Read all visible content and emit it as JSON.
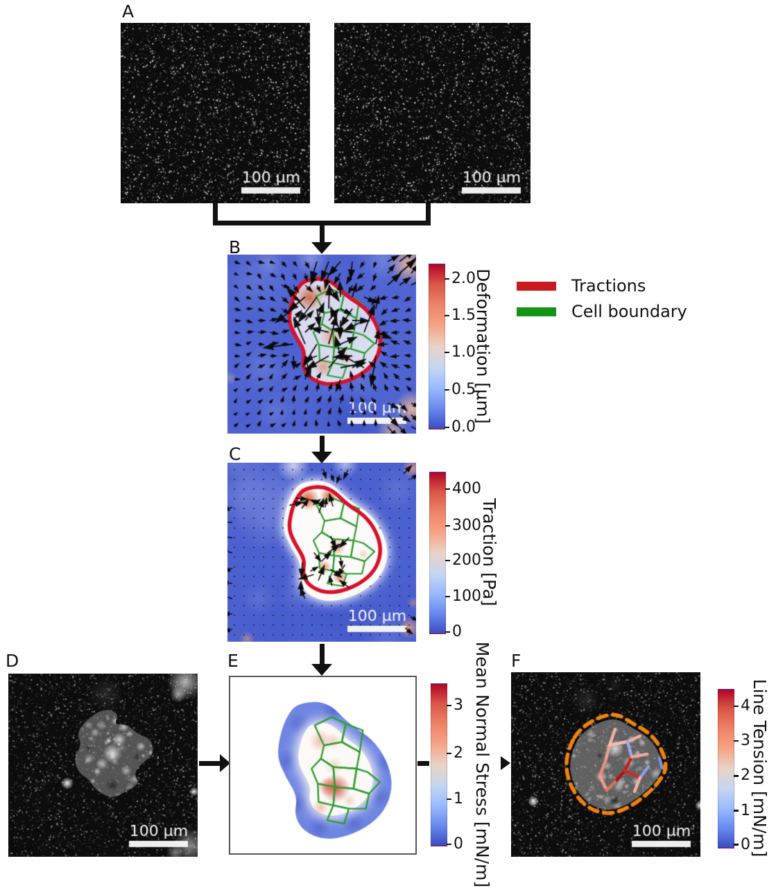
{
  "panel_labels": {
    "a": "A",
    "b": "B",
    "c": "C",
    "d": "D",
    "e": "E",
    "f": "F"
  },
  "scalebar_text": "100 μm",
  "legend": {
    "items": [
      {
        "label": "Tractions",
        "color": "#cb1a1f"
      },
      {
        "label": "Cell boundary",
        "color": "#149414"
      }
    ]
  },
  "colorbars": {
    "deformation": {
      "title": "Deformation [μm]",
      "ticks": [
        "2.0",
        "1.5",
        "1.0",
        "0.5",
        "0.0"
      ]
    },
    "traction": {
      "title": "Traction [Pa]",
      "ticks": [
        "400",
        "300",
        "200",
        "100",
        "0"
      ]
    },
    "mean_normal_stress": {
      "title": "Mean Normal Stress [mN/m]",
      "ticks": [
        "3",
        "2",
        "1",
        "0"
      ]
    },
    "line_tension": {
      "title": "Line Tension [mN/m]",
      "ticks": [
        "4",
        "3",
        "2",
        "1",
        "0"
      ]
    }
  },
  "colors": {
    "colormap_low": "#3b4cc0",
    "colormap_high": "#b40426",
    "traction_boundary": "#d8112b",
    "cell_boundary": "#2f9e33",
    "colony_boundary_dashed": "#f2820c"
  }
}
